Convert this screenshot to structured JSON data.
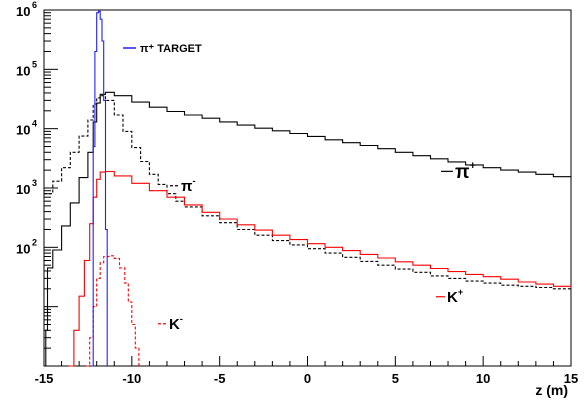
{
  "chart_data": {
    "type": "line",
    "xlabel": "z (m)",
    "ylabel": "",
    "xlim": [
      -15,
      15
    ],
    "ylim": [
      1,
      1000000
    ],
    "yscale": "log",
    "grid": false,
    "x_ticks": [
      "-15",
      "-10",
      "-5",
      "0",
      "5",
      "10",
      "15"
    ],
    "y_tick_exponents": [
      "2",
      "3",
      "4",
      "5",
      "6"
    ],
    "y_tick_base": "10",
    "legend": {
      "label": "π⁺ TARGET",
      "color": "#2020ff",
      "placement": "top-left"
    },
    "series": [
      {
        "name": "π⁺",
        "label_parts": [
          "π",
          "+"
        ],
        "color": "#000000",
        "dash": "solid",
        "points": [
          [
            -15.0,
            1
          ],
          [
            -14.9,
            4
          ],
          [
            -14.8,
            45
          ],
          [
            -14.5,
            90
          ],
          [
            -14.0,
            230
          ],
          [
            -13.5,
            560
          ],
          [
            -13.0,
            1500
          ],
          [
            -12.5,
            4000
          ],
          [
            -12.2,
            13000
          ],
          [
            -12.0,
            27000
          ],
          [
            -11.8,
            38000
          ],
          [
            -11.5,
            41000
          ],
          [
            -11.0,
            36000
          ],
          [
            -10.0,
            28000
          ],
          [
            -9.0,
            23000
          ],
          [
            -8.0,
            19500
          ],
          [
            -7.0,
            17000
          ],
          [
            -6.0,
            15000
          ],
          [
            -5.0,
            13000
          ],
          [
            -4.0,
            11500
          ],
          [
            -3.0,
            10200
          ],
          [
            -2.0,
            9200
          ],
          [
            -1.0,
            8300
          ],
          [
            0.0,
            7400
          ],
          [
            1.0,
            6500
          ],
          [
            2.0,
            5800
          ],
          [
            3.0,
            5200
          ],
          [
            4.0,
            4600
          ],
          [
            5.0,
            4000
          ],
          [
            6.0,
            3500
          ],
          [
            7.0,
            3100
          ],
          [
            8.0,
            2750
          ],
          [
            9.0,
            2450
          ],
          [
            10.0,
            2200
          ],
          [
            11.0,
            2000
          ],
          [
            12.0,
            1850
          ],
          [
            13.0,
            1700
          ],
          [
            14.0,
            1550
          ],
          [
            15.0,
            1500
          ]
        ]
      },
      {
        "name": "π⁻",
        "label_parts": [
          "π",
          "-"
        ],
        "color": "#000000",
        "dash": "dashed",
        "points": [
          [
            -15.0,
            800
          ],
          [
            -14.5,
            1300
          ],
          [
            -14.0,
            2200
          ],
          [
            -13.5,
            4000
          ],
          [
            -13.0,
            7500
          ],
          [
            -12.5,
            14000
          ],
          [
            -12.2,
            26000
          ],
          [
            -12.0,
            33000
          ],
          [
            -11.8,
            36000
          ],
          [
            -11.5,
            30000
          ],
          [
            -11.0,
            17000
          ],
          [
            -10.5,
            9000
          ],
          [
            -10.0,
            4800
          ],
          [
            -9.5,
            2800
          ],
          [
            -9.0,
            1700
          ],
          [
            -8.5,
            1150
          ],
          [
            -8.0,
            800
          ],
          [
            -7.5,
            600
          ],
          [
            -7.0,
            480
          ],
          [
            -6.0,
            340
          ],
          [
            -5.0,
            260
          ],
          [
            -4.0,
            200
          ],
          [
            -3.0,
            160
          ],
          [
            -2.0,
            130
          ],
          [
            -1.0,
            110
          ],
          [
            0.0,
            95
          ],
          [
            1.0,
            80
          ],
          [
            2.0,
            68
          ],
          [
            3.0,
            58
          ],
          [
            4.0,
            50
          ],
          [
            5.0,
            43
          ],
          [
            6.0,
            38
          ],
          [
            7.0,
            33
          ],
          [
            8.0,
            30
          ],
          [
            9.0,
            27
          ],
          [
            10.0,
            25
          ],
          [
            11.0,
            23
          ],
          [
            12.0,
            22
          ],
          [
            13.0,
            21
          ],
          [
            14.0,
            20
          ],
          [
            15.0,
            19
          ]
        ]
      },
      {
        "name": "K⁺",
        "label_parts": [
          "K",
          "+"
        ],
        "color": "#ff0000",
        "dash": "solid",
        "points": [
          [
            -13.6,
            1
          ],
          [
            -13.3,
            4
          ],
          [
            -13.0,
            15
          ],
          [
            -12.7,
            60
          ],
          [
            -12.4,
            250
          ],
          [
            -12.2,
            700
          ],
          [
            -12.0,
            1400
          ],
          [
            -11.8,
            1850
          ],
          [
            -11.5,
            1900
          ],
          [
            -11.0,
            1600
          ],
          [
            -10.0,
            1200
          ],
          [
            -9.0,
            900
          ],
          [
            -8.0,
            700
          ],
          [
            -7.0,
            520
          ],
          [
            -6.0,
            390
          ],
          [
            -5.0,
            300
          ],
          [
            -4.0,
            240
          ],
          [
            -3.0,
            195
          ],
          [
            -2.0,
            160
          ],
          [
            -1.0,
            135
          ],
          [
            0.0,
            115
          ],
          [
            1.0,
            100
          ],
          [
            2.0,
            88
          ],
          [
            3.0,
            76
          ],
          [
            4.0,
            66
          ],
          [
            5.0,
            57
          ],
          [
            6.0,
            50
          ],
          [
            7.0,
            44
          ],
          [
            8.0,
            39
          ],
          [
            9.0,
            35
          ],
          [
            10.0,
            32
          ],
          [
            11.0,
            29
          ],
          [
            12.0,
            26
          ],
          [
            13.0,
            24
          ],
          [
            14.0,
            22
          ],
          [
            15.0,
            21
          ]
        ]
      },
      {
        "name": "K⁻",
        "label_parts": [
          "K",
          "-"
        ],
        "color": "#ff0000",
        "dash": "dashed",
        "points": [
          [
            -12.6,
            1
          ],
          [
            -12.4,
            3
          ],
          [
            -12.2,
            10
          ],
          [
            -12.0,
            30
          ],
          [
            -11.8,
            55
          ],
          [
            -11.6,
            70
          ],
          [
            -11.3,
            72
          ],
          [
            -11.0,
            65
          ],
          [
            -10.7,
            45
          ],
          [
            -10.4,
            25
          ],
          [
            -10.2,
            12
          ],
          [
            -10.0,
            5
          ],
          [
            -9.8,
            2
          ],
          [
            -9.6,
            1
          ]
        ]
      },
      {
        "name": "π⁺ TARGET",
        "color": "#2020ff",
        "dash": "solid",
        "points": [
          [
            -12.3,
            1
          ],
          [
            -12.2,
            5000
          ],
          [
            -12.1,
            200000
          ],
          [
            -12.0,
            900000
          ],
          [
            -11.9,
            950000
          ],
          [
            -11.8,
            700000
          ],
          [
            -11.7,
            300000
          ],
          [
            -11.6,
            30000
          ],
          [
            -11.5,
            200
          ],
          [
            -11.4,
            1
          ]
        ]
      }
    ]
  }
}
